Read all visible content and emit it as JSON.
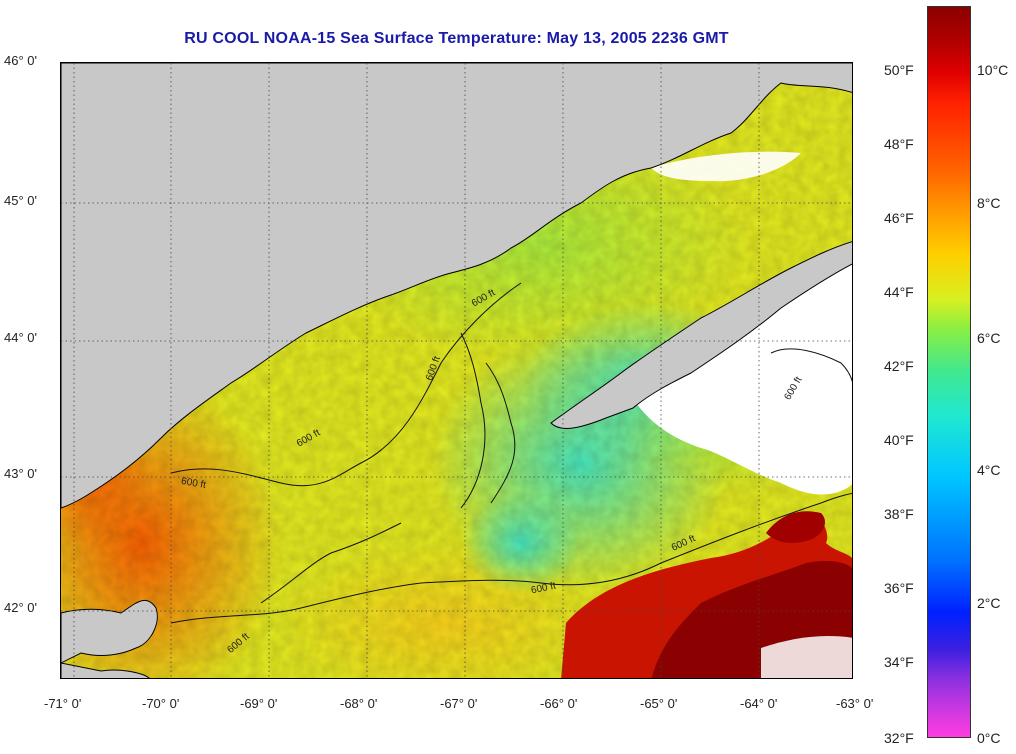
{
  "title": "RU COOL  NOAA-15  Sea Surface Temperature:  May 13, 2005 2236 GMT",
  "lat_ticks": [
    "46° 0'",
    "45° 0'",
    "44° 0'",
    "43° 0'",
    "42° 0'"
  ],
  "lon_ticks": [
    "-71° 0'",
    "-70° 0'",
    "-69° 0'",
    "-68° 0'",
    "-67° 0'",
    "-66° 0'",
    "-65° 0'",
    "-64° 0'",
    "-63° 0'"
  ],
  "contour_label": "600 ft",
  "colorbar": {
    "fahrenheit": [
      "50°F",
      "48°F",
      "46°F",
      "44°F",
      "42°F",
      "40°F",
      "38°F",
      "36°F",
      "34°F",
      "32°F"
    ],
    "celsius": [
      "10°C",
      "8°C",
      "6°C",
      "4°C",
      "2°C",
      "0°C"
    ]
  },
  "colors": {
    "land": "#c8c8c8",
    "cloud": "#ffffff",
    "title": "#1a1aa8",
    "warm_core": "#8b0000"
  }
}
